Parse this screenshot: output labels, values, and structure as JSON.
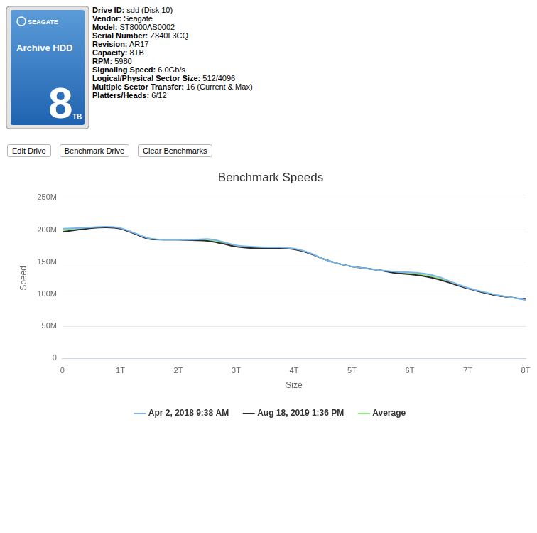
{
  "drive_image": {
    "brand": "SEAGATE",
    "title": "Archive HDD",
    "capacity": "8",
    "unit": "TB"
  },
  "drive_info": [
    {
      "label": "Drive ID:",
      "value": "sdd (Disk 10)"
    },
    {
      "label": "Vendor:",
      "value": "Seagate"
    },
    {
      "label": "Model:",
      "value": "ST8000AS0002"
    },
    {
      "label": "Serial Number:",
      "value": "Z840L3CQ"
    },
    {
      "label": "Revision:",
      "value": "AR17"
    },
    {
      "label": "Capacity:",
      "value": "8TB"
    },
    {
      "label": "RPM:",
      "value": "5980"
    },
    {
      "label": "Signaling Speed:",
      "value": "6.0Gb/s"
    },
    {
      "label": "Logical/Physical Sector Size:",
      "value": "512/4096"
    },
    {
      "label": "Multiple Sector Transfer:",
      "value": "16 (Current & Max)"
    },
    {
      "label": "Platters/Heads:",
      "value": "6/12"
    }
  ],
  "buttons": [
    "Edit Drive",
    "Benchmark Drive",
    "Clear Benchmarks"
  ],
  "chart_data": {
    "type": "line",
    "title": "Benchmark Speeds",
    "x_label": "Size",
    "y_label": "Speed",
    "x": [
      0,
      0.25,
      0.5,
      0.75,
      1,
      1.25,
      1.5,
      1.75,
      2,
      2.25,
      2.5,
      2.75,
      3,
      3.25,
      3.5,
      3.75,
      4,
      4.25,
      4.5,
      4.75,
      5,
      5.25,
      5.5,
      5.75,
      6,
      6.25,
      6.5,
      6.75,
      7,
      7.25,
      7.5,
      7.75,
      8
    ],
    "series": [
      {
        "name": "Apr 2, 2018 9:38 AM",
        "color": "#7cb5ec",
        "values": [
          202,
          203,
          204,
          205,
          203,
          195,
          187,
          185,
          185,
          185,
          186,
          182,
          176,
          174,
          173,
          173,
          171,
          165,
          155,
          148,
          143,
          140,
          137,
          135,
          134,
          132,
          127,
          118,
          110,
          104,
          99,
          95,
          91
        ]
      },
      {
        "name": "Aug 18, 2019 1:36 PM",
        "color": "#2b2b2b",
        "values": [
          197,
          200,
          203,
          204,
          202,
          194,
          186,
          185,
          185,
          184,
          183,
          179,
          174,
          172,
          172,
          172,
          170,
          164,
          155,
          148,
          143,
          140,
          137,
          133,
          131,
          128,
          123,
          116,
          109,
          103,
          98,
          95,
          92
        ]
      },
      {
        "name": "Average",
        "color": "#90ed7d",
        "values": [
          200,
          201.5,
          203.5,
          204.5,
          202.5,
          194.5,
          186.5,
          185,
          185,
          184.5,
          184.5,
          180.5,
          175,
          173,
          172.5,
          172.5,
          170.5,
          164.5,
          155,
          148,
          143,
          140,
          137,
          134,
          132.5,
          130,
          125,
          117,
          109.5,
          103.5,
          98.5,
          95,
          91.5
        ]
      }
    ],
    "xlim": [
      0,
      8
    ],
    "xticks": [
      0,
      {
        "value": 1,
        "label": "1T"
      },
      {
        "value": 2,
        "label": "2T"
      },
      {
        "value": 3,
        "label": "3T"
      },
      {
        "value": 4,
        "label": "4T"
      },
      {
        "value": 5,
        "label": "5T"
      },
      {
        "value": 6,
        "label": "6T"
      },
      {
        "value": 7,
        "label": "7T"
      },
      {
        "value": 8,
        "label": "8T"
      }
    ],
    "ylim": [
      0,
      250
    ],
    "yticks": [
      0,
      {
        "value": 50,
        "label": "50M"
      },
      {
        "value": 100,
        "label": "100M"
      },
      {
        "value": 150,
        "label": "150M"
      },
      {
        "value": 200,
        "label": "200M"
      },
      {
        "value": 250,
        "label": "250M"
      }
    ],
    "grid": true,
    "legend": "bottom"
  }
}
